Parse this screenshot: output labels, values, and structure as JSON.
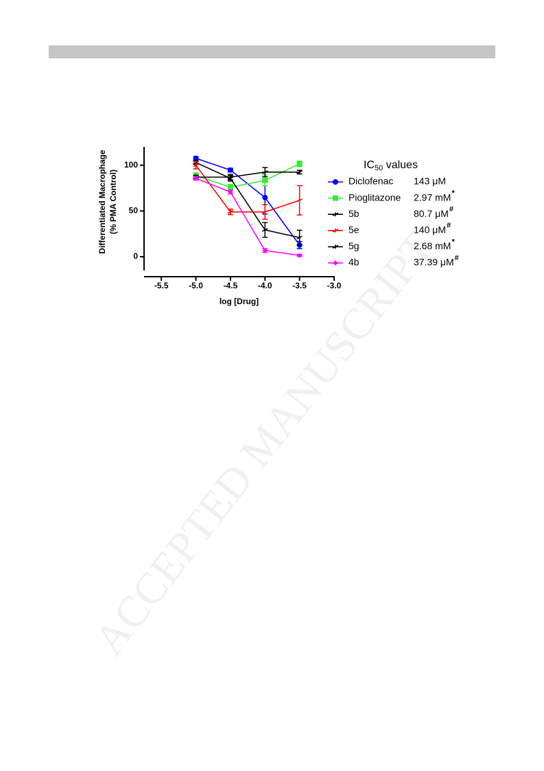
{
  "watermark": "ACCEPTED MANUSCRIPT",
  "chart_data": {
    "type": "line",
    "ylabel": [
      "Differentiated Macrophage",
      "(% PMA Control)"
    ],
    "xlabel": "log [Drug]",
    "legend_title": [
      "IC",
      "50",
      " values"
    ],
    "xlim": [
      -5.75,
      -3.0
    ],
    "xticks": [
      -5.5,
      {
        "value": -5.0,
        "label": "-5.0"
      },
      -4.5,
      {
        "value": -4.0,
        "label": "-4.0"
      },
      -3.5,
      {
        "value": -3.0,
        "label": "-3.0"
      }
    ],
    "ylim": [
      -15,
      120
    ],
    "yticks": [
      0,
      50,
      100
    ],
    "x": [
      -5.0,
      -4.5,
      -4.0,
      -3.5
    ],
    "series": [
      {
        "name": "Diclofenac",
        "color": "#0000ff",
        "marker": "circle",
        "values": [
          107.5,
          94.7,
          64.7,
          12.8
        ],
        "errors": [
          2,
          2,
          18,
          4
        ],
        "ic50": "143 μM"
      },
      {
        "name": "Pioglitazone",
        "color": "#33ee33",
        "marker": "square",
        "values": [
          88.7,
          76,
          83.5,
          101.5
        ],
        "errors": [
          3,
          3,
          6,
          3
        ],
        "ic50": "2.97 mM",
        "ic50_note": "*"
      },
      {
        "name": "5b",
        "color": "#000000",
        "marker": "tick",
        "values": [
          103,
          85.7,
          29.3,
          21
        ],
        "errors": [
          2,
          3,
          8,
          8
        ],
        "ic50": "80.7 μM",
        "ic50_note": "#"
      },
      {
        "name": "5e",
        "color": "#ff0000",
        "marker": "tick",
        "values": [
          100,
          49,
          49,
          61.7
        ],
        "errors": [
          4,
          3,
          8,
          16
        ],
        "ic50": "140 μM",
        "ic50_note": "#"
      },
      {
        "name": "5g",
        "color": "#000000",
        "marker": "tick",
        "values": [
          87,
          87,
          92.5,
          92.5
        ],
        "errors": [
          2,
          3,
          5,
          2
        ],
        "ic50": "2.68 mM",
        "ic50_note": "*"
      },
      {
        "name": "4b",
        "color": "#ff00ff",
        "marker": "diamond",
        "values": [
          85.7,
          70.7,
          6.8,
          1.5
        ],
        "errors": [
          2,
          2,
          2,
          1
        ],
        "ic50": "37.39 μM",
        "ic50_note": "#"
      }
    ]
  }
}
